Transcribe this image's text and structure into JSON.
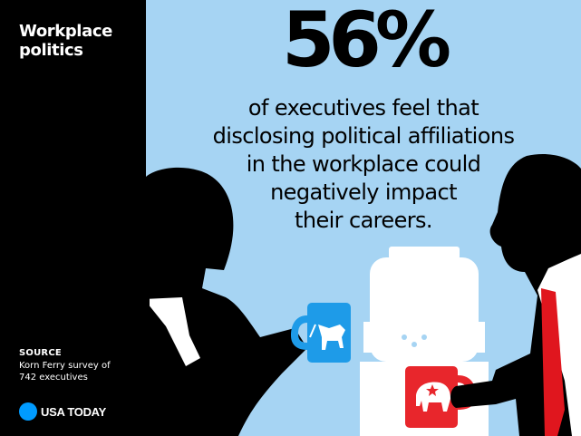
{
  "sidebar": {
    "title_lines": [
      "Workplace",
      "politics"
    ],
    "source_label": "SOURCE",
    "source_lines": [
      "Korn Ferry survey of",
      "742 executives"
    ],
    "brand": "USA TODAY"
  },
  "colors": {
    "sidebar_bg": "#000000",
    "panel_bg": "#a6d4f3",
    "brand_dot": "#009bff",
    "mug_blue": "#1e9be8",
    "mug_red": "#e8262c",
    "tie_red": "#e0161e"
  },
  "icons": [
    "donkey-icon",
    "elephant-icon",
    "water-cooler-icon"
  ],
  "chart_data": {
    "type": "stat",
    "value": 56,
    "unit": "%",
    "display": "56%",
    "caption_lines": [
      "of executives feel that",
      "disclosing political affiliations",
      "in the workplace could",
      "negatively impact",
      "their careers."
    ]
  }
}
